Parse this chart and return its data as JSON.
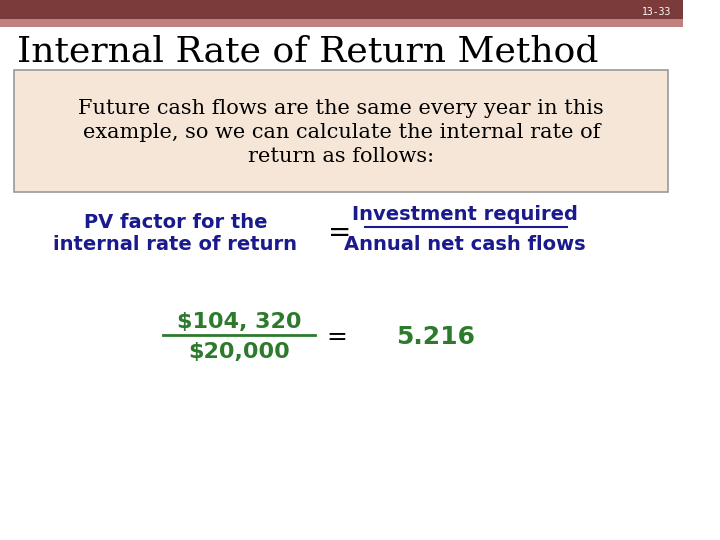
{
  "slide_number": "13-33",
  "title": "Internal Rate of Return Method",
  "box_text_line1": "Future cash flows are the same every year in this",
  "box_text_line2": "example, so we can calculate the internal rate of",
  "box_text_line3": "return as follows:",
  "box_bg_color": "#f5e6d8",
  "box_border_color": "#999999",
  "left_label_line1": "PV factor for the",
  "left_label_line2": "internal rate of return",
  "equals_sign": "=",
  "fraction_numerator": "Investment required",
  "fraction_denominator": "Annual net cash flows",
  "calc_numerator": "$104, 320",
  "calc_denominator": "$20,000",
  "calc_equals": "=",
  "calc_result": "5.216",
  "dark_blue_color": "#1a1a8c",
  "green_color": "#2d7a2d",
  "header_bar_color": "#7b3b3b",
  "header_bar_color2": "#c08080",
  "title_color": "#000000",
  "bg_color": "#ffffff",
  "slide_num_color": "#ffffff"
}
